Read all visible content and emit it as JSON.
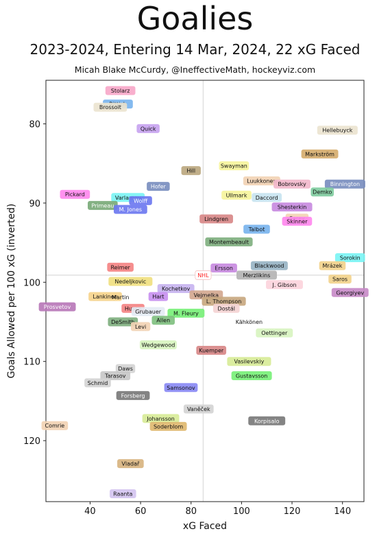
{
  "chart_data": {
    "type": "scatter",
    "title": "Goalies",
    "subtitle": "2023-2024, Entering 14 Mar, 2024, 22 xG Faced",
    "credit": "Micah Blake McCurdy, @IneffectiveMath, hockeyviz.com",
    "xlabel": "xG Faced",
    "ylabel": "Goals Allowed per 100 xG (inverted)",
    "xlim": [
      22.5,
      148.5
    ],
    "ylim": [
      127.7,
      74.5
    ],
    "y_inverted": true,
    "xticks": [
      40,
      60,
      80,
      100,
      120,
      140
    ],
    "yticks": [
      80,
      90,
      100,
      110,
      120
    ],
    "reference_lines": {
      "x": 84.8,
      "y": 99.1
    },
    "reference_label": "NHL",
    "points": [
      {
        "label": "Stolarz",
        "x": 52,
        "y": 75.8,
        "color": "#f7a8c9"
      },
      {
        "label": "Rittich",
        "x": 51,
        "y": 77.5,
        "color": "#7ab4ee"
      },
      {
        "label": "Brossoit",
        "x": 48,
        "y": 77.9,
        "color": "#ece4d0"
      },
      {
        "label": "Quick",
        "x": 63,
        "y": 80.6,
        "color": "#c8a4f0"
      },
      {
        "label": "Hellebuyck",
        "x": 138,
        "y": 80.8,
        "color": "#ece4d0"
      },
      {
        "label": "Markström",
        "x": 131,
        "y": 83.8,
        "color": "#d6ad6e"
      },
      {
        "label": "Hill",
        "x": 80,
        "y": 85.9,
        "color": "#bca880"
      },
      {
        "label": "Swayman",
        "x": 97,
        "y": 85.3,
        "color": "#f6f49c"
      },
      {
        "label": "Luukkonen",
        "x": 108,
        "y": 87.2,
        "color": "#f2d2b4"
      },
      {
        "label": "Bobrovsky",
        "x": 120,
        "y": 87.6,
        "color": "#f2b8cc"
      },
      {
        "label": "Binnington",
        "x": 141,
        "y": 87.6,
        "color": "#7a8ebf"
      },
      {
        "label": "Hofer",
        "x": 67,
        "y": 87.9,
        "color": "#7a8ebf"
      },
      {
        "label": "Demko",
        "x": 132,
        "y": 88.6,
        "color": "#80cca0"
      },
      {
        "label": "Pickard",
        "x": 34,
        "y": 88.9,
        "color": "#ff88ee"
      },
      {
        "label": "Varlamov",
        "x": 55,
        "y": 89.3,
        "color": "#7cf4f4"
      },
      {
        "label": "Ullmark",
        "x": 98,
        "y": 89.0,
        "color": "#f6f49c"
      },
      {
        "label": "Daccord",
        "x": 110,
        "y": 89.3,
        "color": "#c8e4f0"
      },
      {
        "label": "Wolff",
        "x": 60,
        "y": 89.7,
        "color": "#6d78f0"
      },
      {
        "label": "Primeau",
        "x": 45,
        "y": 90.3,
        "color": "#7aaa78"
      },
      {
        "label": "M. Jones",
        "x": 56,
        "y": 90.8,
        "color": "#6d78f0"
      },
      {
        "label": "Shesterkin",
        "x": 120,
        "y": 90.5,
        "color": "#c88be0"
      },
      {
        "label": "Lindgren",
        "x": 90,
        "y": 92.0,
        "color": "#d88888"
      },
      {
        "label": "Sarey",
        "x": 122,
        "y": 91.9,
        "color": "#f2d2b4"
      },
      {
        "label": "Skinner",
        "x": 122,
        "y": 92.3,
        "color": "#ff88ee"
      },
      {
        "label": "Talbot",
        "x": 106,
        "y": 93.3,
        "color": "#7ab4ee"
      },
      {
        "label": "Montembeault",
        "x": 95,
        "y": 94.9,
        "color": "#80b080"
      },
      {
        "label": "Sorokin",
        "x": 143,
        "y": 96.9,
        "color": "#7cf4f4"
      },
      {
        "label": "Reimer",
        "x": 52,
        "y": 98.1,
        "color": "#f48484"
      },
      {
        "label": "Ersson",
        "x": 93,
        "y": 98.2,
        "color": "#c88be0"
      },
      {
        "label": "Blackwood",
        "x": 111,
        "y": 97.9,
        "color": "#98b4c4"
      },
      {
        "label": "Mrázek",
        "x": 136,
        "y": 97.9,
        "color": "#f2d28c"
      },
      {
        "label": "Merzlikins",
        "x": 106,
        "y": 99.1,
        "color": "#b4b4b4"
      },
      {
        "label": "Saros",
        "x": 139,
        "y": 99.6,
        "color": "#f2d28c"
      },
      {
        "label": "Nedeljkovic",
        "x": 56,
        "y": 99.9,
        "color": "#f0e080"
      },
      {
        "label": "J. Gibson",
        "x": 117,
        "y": 100.3,
        "color": "#fcd4dc"
      },
      {
        "label": "Kochetkov",
        "x": 74,
        "y": 100.8,
        "color": "#c8b4f0"
      },
      {
        "label": "Georgiyev",
        "x": 143,
        "y": 101.3,
        "color": "#c88bc8"
      },
      {
        "label": "Lankinen",
        "x": 46,
        "y": 101.8,
        "color": "#f6d48c"
      },
      {
        "label": "Martin",
        "x": 52,
        "y": 101.9,
        "color": "#ffffff"
      },
      {
        "label": "Hart",
        "x": 67,
        "y": 101.8,
        "color": "#c890f0"
      },
      {
        "label": "Vejmelka",
        "x": 86,
        "y": 101.6,
        "color": "#d4a890"
      },
      {
        "label": "L. Thompson",
        "x": 93,
        "y": 102.4,
        "color": "#c8a880"
      },
      {
        "label": "Prosvetov",
        "x": 27,
        "y": 103.1,
        "color": "#b878b8"
      },
      {
        "label": "Husso",
        "x": 57,
        "y": 103.3,
        "color": "#f48484"
      },
      {
        "label": "Grubauer",
        "x": 63,
        "y": 103.7,
        "color": "#e4ecf4"
      },
      {
        "label": "Dostál",
        "x": 94,
        "y": 103.3,
        "color": "#f4d4d4"
      },
      {
        "label": "M. Fleury",
        "x": 78,
        "y": 103.9,
        "color": "#78f078"
      },
      {
        "label": "DeSmith",
        "x": 53,
        "y": 105.0,
        "color": "#80b080"
      },
      {
        "label": "Allen",
        "x": 69,
        "y": 104.8,
        "color": "#80c080"
      },
      {
        "label": "Levi",
        "x": 60,
        "y": 105.6,
        "color": "#f2d2b4"
      },
      {
        "label": "Kähkönen",
        "x": 103,
        "y": 105.0,
        "color": "#ffffff"
      },
      {
        "label": "Oettinger",
        "x": 113,
        "y": 106.4,
        "color": "#d8f4c0"
      },
      {
        "label": "Wedgewood",
        "x": 67,
        "y": 107.9,
        "color": "#d8f4c0"
      },
      {
        "label": "Kuemper",
        "x": 88,
        "y": 108.6,
        "color": "#d88888"
      },
      {
        "label": "Vasilevskiy",
        "x": 103,
        "y": 110.0,
        "color": "#d8ec98"
      },
      {
        "label": "Daws",
        "x": 54,
        "y": 110.9,
        "color": "#d4d4d4"
      },
      {
        "label": "Tarasov",
        "x": 50,
        "y": 111.8,
        "color": "#c8c8c8"
      },
      {
        "label": "Gustavsson",
        "x": 104,
        "y": 111.8,
        "color": "#78f078"
      },
      {
        "label": "Schmid",
        "x": 43,
        "y": 112.7,
        "color": "#d4d4d4"
      },
      {
        "label": "Samsonov",
        "x": 76,
        "y": 113.3,
        "color": "#8a8af4"
      },
      {
        "label": "Forsberg",
        "x": 57,
        "y": 114.3,
        "color": "#7a7a7a"
      },
      {
        "label": "Vaněček",
        "x": 83,
        "y": 116.0,
        "color": "#d4d4d4"
      },
      {
        "label": "Johansson",
        "x": 68,
        "y": 117.2,
        "color": "#d8ec98"
      },
      {
        "label": "Korpisalo",
        "x": 110,
        "y": 117.5,
        "color": "#7a7a7a"
      },
      {
        "label": "Comrie",
        "x": 26,
        "y": 118.1,
        "color": "#f2d2b4"
      },
      {
        "label": "Soderblom",
        "x": 71,
        "y": 118.2,
        "color": "#e0b870"
      },
      {
        "label": "Vladař",
        "x": 56,
        "y": 122.9,
        "color": "#d8b480"
      },
      {
        "label": "Raanta",
        "x": 53,
        "y": 126.7,
        "color": "#d4c4f0"
      }
    ]
  }
}
